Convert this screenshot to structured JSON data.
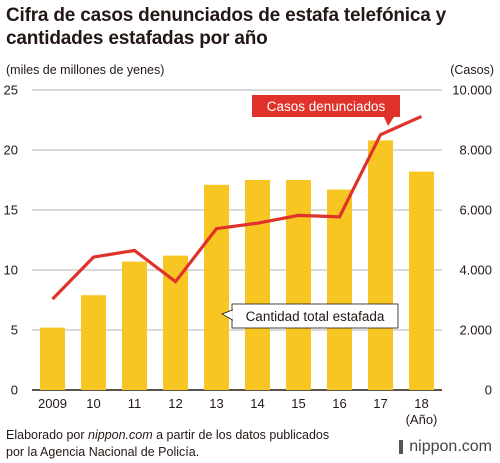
{
  "title_line1": "Cifra de casos denunciados de estafa telefónica y",
  "title_line2": "cantidades estafadas por año",
  "unit_left": "(miles de millones de yenes)",
  "unit_right": "(Casos)",
  "footer": {
    "prefix": "Elaborado por ",
    "site": "nippon.com",
    "suffix": " a partir de los datos publicados",
    "line2": "por la Agencia Nacional de Policía."
  },
  "logo": "nippon.com",
  "colors": {
    "bar": "#f8c623",
    "line": "#e0322b",
    "axis": "#231815"
  },
  "chart_data": {
    "type": "bar",
    "categories": [
      "2009",
      "10",
      "11",
      "12",
      "13",
      "14",
      "15",
      "16",
      "17",
      "18"
    ],
    "x_axis_suffix": "(Año)",
    "left_axis": {
      "range": [
        0,
        25
      ],
      "ticks": [
        "0",
        "5",
        "10",
        "15",
        "20",
        "25"
      ]
    },
    "right_axis": {
      "range": [
        0,
        10000
      ],
      "ticks": [
        "0",
        "2.000",
        "4.000",
        "6.000",
        "8.000",
        "10.000"
      ]
    },
    "series": [
      {
        "name": "Cantidad total estafada",
        "type": "bar",
        "axis": "left",
        "values": [
          5.2,
          7.9,
          10.7,
          11.2,
          17.1,
          17.5,
          17.5,
          16.7,
          20.8,
          18.2
        ]
      },
      {
        "name": "Casos denunciados",
        "type": "line",
        "axis": "right",
        "values": [
          3030,
          4430,
          4650,
          3610,
          5380,
          5560,
          5820,
          5770,
          8510,
          9120
        ]
      }
    ],
    "grid": true
  }
}
